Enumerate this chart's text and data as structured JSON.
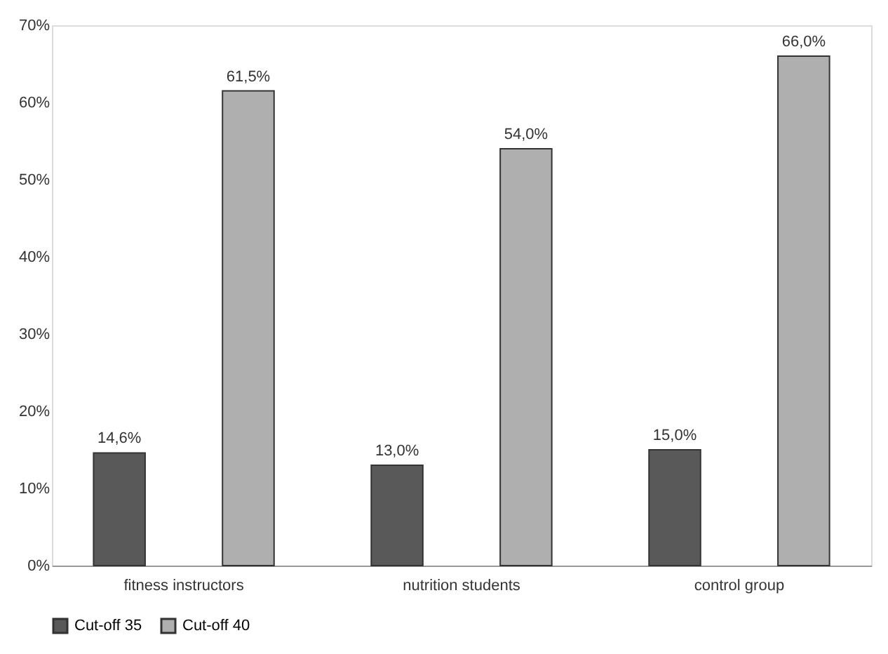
{
  "chart_data": {
    "type": "bar",
    "categories": [
      "fitness instructors",
      "nutrition students",
      "control group"
    ],
    "series": [
      {
        "name": "Cut-off 35",
        "color": "#595959",
        "values": [
          14.6,
          13.0,
          15.0
        ],
        "value_labels": [
          "14,6%",
          "13,0%",
          "15,0%"
        ]
      },
      {
        "name": "Cut-off 40",
        "color": "#afafaf",
        "values": [
          61.5,
          54.0,
          66.0
        ],
        "value_labels": [
          "61,5%",
          "54,0%",
          "66,0%"
        ]
      }
    ],
    "ylim": [
      0,
      70
    ],
    "yticks": [
      {
        "value": 0,
        "label": "0%"
      },
      {
        "value": 10,
        "label": "10%"
      },
      {
        "value": 20,
        "label": "20%"
      },
      {
        "value": 30,
        "label": "30%"
      },
      {
        "value": 40,
        "label": "40%"
      },
      {
        "value": 50,
        "label": "50%"
      },
      {
        "value": 60,
        "label": "60%"
      },
      {
        "value": 70,
        "label": "70%"
      }
    ],
    "grid": false,
    "legend": "bottom"
  }
}
